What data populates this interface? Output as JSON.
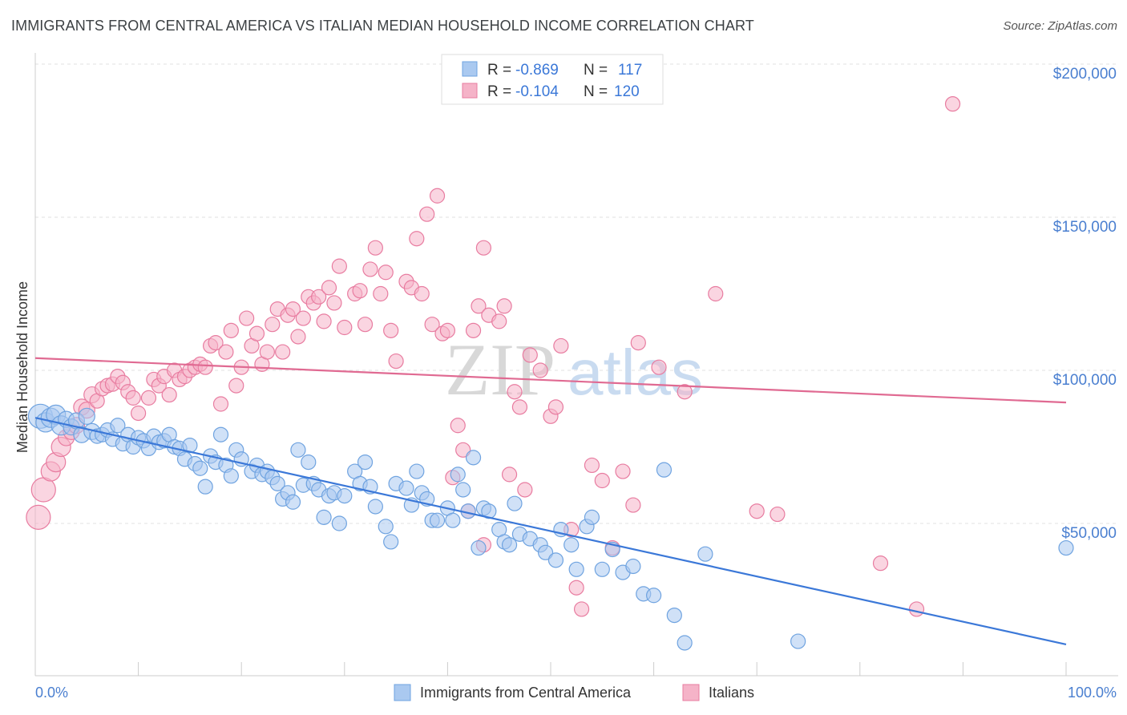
{
  "title": "IMMIGRANTS FROM CENTRAL AMERICA VS ITALIAN MEDIAN HOUSEHOLD INCOME CORRELATION CHART",
  "source": "Source: ZipAtlas.com",
  "watermark": {
    "zip": "ZIP",
    "atlas": "atlas"
  },
  "chart_data": {
    "type": "scatter",
    "xlabel": "",
    "ylabel": "Median Household Income",
    "xlim": [
      0,
      100
    ],
    "ylim": [
      0,
      200000
    ],
    "x_tick_labels": [
      "0.0%",
      "100.0%"
    ],
    "y_ticks": [
      50000,
      100000,
      150000,
      200000
    ],
    "y_tick_labels": [
      "$50,000",
      "$100,000",
      "$150,000",
      "$200,000"
    ],
    "grid": true,
    "legend_top": [
      {
        "r_label": "R =",
        "r_value": "-0.869",
        "n_label": "N =",
        "n_value": "117"
      },
      {
        "r_label": "R =",
        "r_value": "-0.104",
        "n_label": "N =",
        "n_value": "120"
      }
    ],
    "series": [
      {
        "name": "Immigrants from Central America",
        "color": "#6fa3e0",
        "fill": "#aac9f0",
        "trend": {
          "x": [
            0,
            100
          ],
          "y": [
            84500,
            10500
          ]
        },
        "points": [
          [
            0.5,
            85000
          ],
          [
            1,
            83000
          ],
          [
            1.5,
            84500
          ],
          [
            2,
            85500
          ],
          [
            2.5,
            82000
          ],
          [
            3,
            84000
          ],
          [
            3.5,
            81500
          ],
          [
            4,
            83500
          ],
          [
            4.5,
            79000
          ],
          [
            5,
            85000
          ],
          [
            5.5,
            80000
          ],
          [
            6,
            78500
          ],
          [
            6.5,
            79000
          ],
          [
            7,
            80500
          ],
          [
            7.5,
            77500
          ],
          [
            8,
            82000
          ],
          [
            8.5,
            76000
          ],
          [
            9,
            79000
          ],
          [
            9.5,
            75000
          ],
          [
            10,
            78000
          ],
          [
            10.5,
            77000
          ],
          [
            11,
            74500
          ],
          [
            11.5,
            78500
          ],
          [
            12,
            76500
          ],
          [
            12.5,
            77000
          ],
          [
            13,
            79000
          ],
          [
            13.5,
            75000
          ],
          [
            14,
            74500
          ],
          [
            14.5,
            71000
          ],
          [
            15,
            75500
          ],
          [
            15.5,
            69500
          ],
          [
            16,
            68000
          ],
          [
            16.5,
            62000
          ],
          [
            17,
            72000
          ],
          [
            17.5,
            70000
          ],
          [
            18,
            79000
          ],
          [
            18.5,
            69000
          ],
          [
            19,
            65500
          ],
          [
            19.5,
            74000
          ],
          [
            20,
            71000
          ],
          [
            21,
            67000
          ],
          [
            21.5,
            69000
          ],
          [
            22,
            66000
          ],
          [
            22.5,
            67000
          ],
          [
            23,
            65000
          ],
          [
            23.5,
            63000
          ],
          [
            24,
            58000
          ],
          [
            24.5,
            60000
          ],
          [
            25,
            57000
          ],
          [
            25.5,
            74000
          ],
          [
            26,
            62500
          ],
          [
            26.5,
            70000
          ],
          [
            27,
            63000
          ],
          [
            27.5,
            61000
          ],
          [
            28,
            52000
          ],
          [
            28.5,
            59000
          ],
          [
            29,
            60000
          ],
          [
            29.5,
            50000
          ],
          [
            30,
            59000
          ],
          [
            31,
            67000
          ],
          [
            31.5,
            63000
          ],
          [
            32,
            70000
          ],
          [
            32.5,
            62000
          ],
          [
            33,
            55500
          ],
          [
            34,
            49000
          ],
          [
            34.5,
            44000
          ],
          [
            35,
            63000
          ],
          [
            36,
            61500
          ],
          [
            36.5,
            56000
          ],
          [
            37,
            67000
          ],
          [
            37.5,
            60000
          ],
          [
            38,
            58000
          ],
          [
            38.5,
            51000
          ],
          [
            39,
            51000
          ],
          [
            40,
            55000
          ],
          [
            40.5,
            51000
          ],
          [
            41,
            66000
          ],
          [
            41.5,
            61000
          ],
          [
            42,
            54000
          ],
          [
            42.5,
            71500
          ],
          [
            43,
            42000
          ],
          [
            43.5,
            55000
          ],
          [
            44,
            54000
          ],
          [
            45,
            48000
          ],
          [
            45.5,
            44000
          ],
          [
            46,
            43000
          ],
          [
            46.5,
            56500
          ],
          [
            47,
            46500
          ],
          [
            48,
            45000
          ],
          [
            49,
            43000
          ],
          [
            49.5,
            40500
          ],
          [
            50.5,
            38000
          ],
          [
            51,
            48000
          ],
          [
            52,
            43000
          ],
          [
            52.5,
            35000
          ],
          [
            53.5,
            49000
          ],
          [
            54,
            52000
          ],
          [
            55,
            35000
          ],
          [
            56,
            41500
          ],
          [
            57,
            34000
          ],
          [
            58,
            36000
          ],
          [
            59,
            27000
          ],
          [
            60,
            26500
          ],
          [
            61,
            67500
          ],
          [
            62,
            20000
          ],
          [
            63,
            11000
          ],
          [
            65,
            40000
          ],
          [
            74,
            11500
          ],
          [
            100,
            42000
          ]
        ]
      },
      {
        "name": "Italians",
        "color": "#e87ca0",
        "fill": "#f5b3c8",
        "trend": {
          "x": [
            0,
            100
          ],
          "y": [
            104000,
            89500
          ]
        },
        "points": [
          [
            0.3,
            52000
          ],
          [
            0.8,
            61000
          ],
          [
            1.5,
            67000
          ],
          [
            2,
            70000
          ],
          [
            2.5,
            75000
          ],
          [
            3,
            78000
          ],
          [
            3.5,
            80000
          ],
          [
            4,
            82000
          ],
          [
            4.5,
            88000
          ],
          [
            5,
            87000
          ],
          [
            5.5,
            92000
          ],
          [
            6,
            90000
          ],
          [
            6.5,
            94000
          ],
          [
            7,
            95000
          ],
          [
            7.5,
            95500
          ],
          [
            8,
            98000
          ],
          [
            8.5,
            96000
          ],
          [
            9,
            93000
          ],
          [
            9.5,
            91000
          ],
          [
            10,
            86000
          ],
          [
            11,
            91000
          ],
          [
            11.5,
            97000
          ],
          [
            12,
            95000
          ],
          [
            12.5,
            98000
          ],
          [
            13,
            92000
          ],
          [
            13.5,
            100000
          ],
          [
            14,
            97000
          ],
          [
            14.5,
            98000
          ],
          [
            15,
            100000
          ],
          [
            15.5,
            101000
          ],
          [
            16,
            102000
          ],
          [
            16.5,
            101000
          ],
          [
            17,
            108000
          ],
          [
            17.5,
            109000
          ],
          [
            18,
            89000
          ],
          [
            18.5,
            106000
          ],
          [
            19,
            113000
          ],
          [
            19.5,
            95000
          ],
          [
            20,
            101000
          ],
          [
            20.5,
            117000
          ],
          [
            21,
            108000
          ],
          [
            21.5,
            112000
          ],
          [
            22,
            102000
          ],
          [
            22.5,
            106000
          ],
          [
            23,
            115000
          ],
          [
            23.5,
            120000
          ],
          [
            24,
            106000
          ],
          [
            24.5,
            118000
          ],
          [
            25,
            120000
          ],
          [
            25.5,
            111000
          ],
          [
            26,
            117000
          ],
          [
            26.5,
            124000
          ],
          [
            27,
            122000
          ],
          [
            27.5,
            124000
          ],
          [
            28,
            116000
          ],
          [
            28.5,
            127000
          ],
          [
            29,
            122000
          ],
          [
            29.5,
            134000
          ],
          [
            30,
            114000
          ],
          [
            31,
            125000
          ],
          [
            31.5,
            126000
          ],
          [
            32,
            115000
          ],
          [
            32.5,
            133000
          ],
          [
            33,
            140000
          ],
          [
            33.5,
            125000
          ],
          [
            34,
            132000
          ],
          [
            34.5,
            113000
          ],
          [
            35,
            103000
          ],
          [
            36,
            129000
          ],
          [
            36.5,
            127000
          ],
          [
            37,
            143000
          ],
          [
            37.5,
            125000
          ],
          [
            38,
            151000
          ],
          [
            38.5,
            115000
          ],
          [
            39,
            157000
          ],
          [
            39.5,
            112000
          ],
          [
            40,
            113000
          ],
          [
            40.5,
            65000
          ],
          [
            41,
            82000
          ],
          [
            41.5,
            74000
          ],
          [
            42,
            54000
          ],
          [
            42.5,
            113000
          ],
          [
            43,
            121000
          ],
          [
            43.5,
            140000
          ],
          [
            44,
            118000
          ],
          [
            45,
            116000
          ],
          [
            45.5,
            121000
          ],
          [
            46,
            66000
          ],
          [
            46.5,
            93000
          ],
          [
            47,
            88000
          ],
          [
            47.5,
            61000
          ],
          [
            48,
            105000
          ],
          [
            49,
            100000
          ],
          [
            50,
            85000
          ],
          [
            50.5,
            88000
          ],
          [
            51,
            108000
          ],
          [
            52,
            48000
          ],
          [
            52.5,
            29000
          ],
          [
            53,
            22000
          ],
          [
            54,
            69000
          ],
          [
            55,
            64000
          ],
          [
            56,
            42000
          ],
          [
            57,
            67000
          ],
          [
            58,
            56000
          ],
          [
            58.5,
            109000
          ],
          [
            60.5,
            101000
          ],
          [
            63,
            93000
          ],
          [
            66,
            125000
          ],
          [
            70,
            54000
          ],
          [
            72,
            53000
          ],
          [
            82,
            37000
          ],
          [
            85.5,
            22000
          ],
          [
            89,
            187000
          ],
          [
            43.5,
            43000
          ]
        ]
      }
    ]
  }
}
